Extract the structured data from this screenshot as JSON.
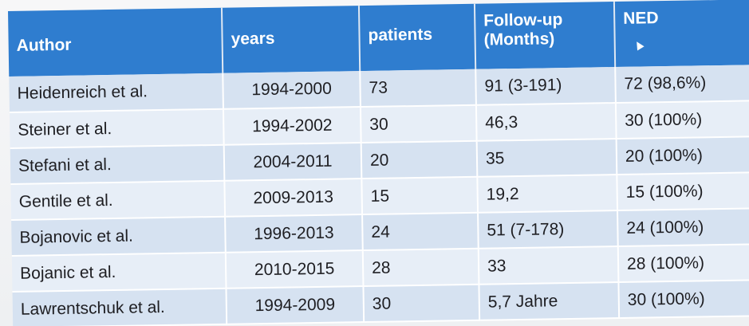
{
  "table": {
    "headers": {
      "author": "Author",
      "years": "years",
      "patients": "patients",
      "follow_up_line1": "Follow-up",
      "follow_up_line2": "(Months)",
      "ned": "NED"
    },
    "rows": [
      {
        "author": "Heidenreich et al.",
        "years": "1994-2000",
        "patients": "73",
        "follow_up": "91 (3-191)",
        "ned": "72 (98,6%)"
      },
      {
        "author": "Steiner et al.",
        "years": "1994-2002",
        "patients": "30",
        "follow_up": "46,3",
        "ned": "30 (100%)"
      },
      {
        "author": "Stefani et al.",
        "years": "2004-2011",
        "patients": "20",
        "follow_up": "35",
        "ned": "20 (100%)"
      },
      {
        "author": "Gentile et al.",
        "years": "2009-2013",
        "patients": "15",
        "follow_up": "19,2",
        "ned": "15 (100%)"
      },
      {
        "author": "Bojanovic et al.",
        "years": "1996-2013",
        "patients": "24",
        "follow_up": "51 (7-178)",
        "ned": "24 (100%)"
      },
      {
        "author": "Bojanic et al.",
        "years": "2010-2015",
        "patients": "28",
        "follow_up": "33",
        "ned": "28 (100%)"
      },
      {
        "author": "Lawrentschuk et al.",
        "years": "1994-2009",
        "patients": "30",
        "follow_up": "5,7 Jahre",
        "ned": "30 (100%)"
      }
    ]
  },
  "colors": {
    "header_bg": "#2f7dcf",
    "header_text": "#ffffff",
    "row_odd": "#d6e2f1",
    "row_even": "#e7eef7"
  },
  "icons": {
    "cursor": "mouse-pointer-icon"
  }
}
